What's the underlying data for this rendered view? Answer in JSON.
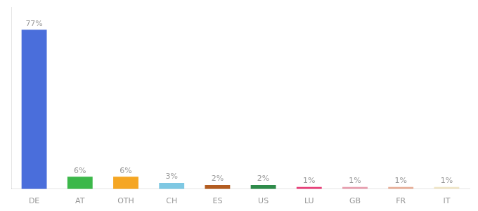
{
  "chart_data": {
    "type": "bar",
    "categories": [
      "DE",
      "AT",
      "OTH",
      "CH",
      "ES",
      "US",
      "LU",
      "GB",
      "FR",
      "IT"
    ],
    "values": [
      77,
      6,
      6,
      3,
      2,
      2,
      1,
      1,
      1,
      1
    ],
    "value_labels": [
      "77%",
      "6%",
      "6%",
      "3%",
      "2%",
      "2%",
      "1%",
      "1%",
      "1%",
      "1%"
    ],
    "colors": [
      "#4a6edb",
      "#3cb84a",
      "#f5a623",
      "#7ec8e3",
      "#b35c20",
      "#2e8b4a",
      "#e8417a",
      "#e8a0b0",
      "#e8b09a",
      "#f0e6c8"
    ],
    "ylim": [
      0,
      88
    ],
    "yticks": [],
    "grid": false,
    "data_labels": true,
    "tick_labels": "x"
  }
}
